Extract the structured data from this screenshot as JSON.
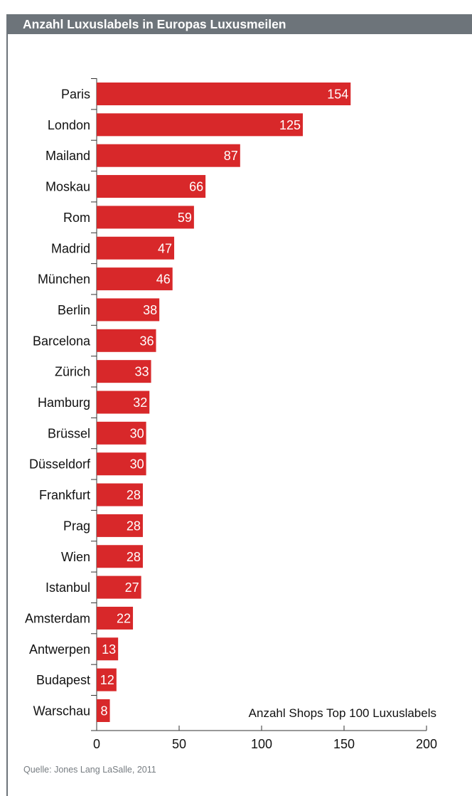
{
  "header": {
    "title": "Anzahl Luxuslabels in Europas Luxusmeilen"
  },
  "source": "Quelle: Jones Lang LaSalle, 2011",
  "colors": {
    "bar": "#d8282a",
    "header_bg": "#6d747a",
    "bar_label": "#ffffff"
  },
  "chart_data": {
    "type": "bar",
    "orientation": "horizontal",
    "title": "Anzahl Luxuslabels in Europas Luxusmeilen",
    "xlabel": "Anzahl Shops Top 100 Luxuslabels",
    "ylabel": "",
    "xlim": [
      0,
      200
    ],
    "xticks": [
      0,
      50,
      100,
      150,
      200
    ],
    "grid": false,
    "categories": [
      "Paris",
      "London",
      "Mailand",
      "Moskau",
      "Rom",
      "Madrid",
      "München",
      "Berlin",
      "Barcelona",
      "Zürich",
      "Hamburg",
      "Brüssel",
      "Düsseldorf",
      "Frankfurt",
      "Prag",
      "Wien",
      "Istanbul",
      "Amsterdam",
      "Antwerpen",
      "Budapest",
      "Warschau"
    ],
    "values": [
      154,
      125,
      87,
      66,
      59,
      47,
      46,
      38,
      36,
      33,
      32,
      30,
      30,
      28,
      28,
      28,
      27,
      22,
      13,
      12,
      8
    ]
  }
}
